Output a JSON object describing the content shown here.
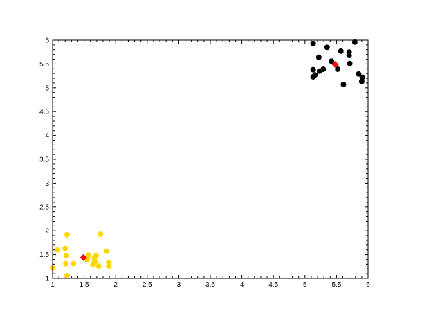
{
  "chart_data": {
    "type": "scatter",
    "title": "",
    "xlabel": "",
    "ylabel": "",
    "xlim": [
      1,
      6
    ],
    "ylim": [
      1,
      6
    ],
    "x_ticks": [
      "1",
      "1.5",
      "2",
      "2.5",
      "3",
      "3.5",
      "4",
      "4.5",
      "5",
      "5.5",
      "6"
    ],
    "y_ticks": [
      "1",
      "1.5",
      "2",
      "2.5",
      "3",
      "3.5",
      "4",
      "4.5",
      "5",
      "5.5",
      "6"
    ],
    "grid": false,
    "series": [
      {
        "color": "#ffd700",
        "marker": "circle",
        "x": [
          1.23,
          1.76,
          1.08,
          1.2,
          1.22,
          1.86,
          1.57,
          1.69,
          1.55,
          1.66,
          1.67,
          1.64,
          1.21,
          1.33,
          1.73,
          1.89,
          1.89,
          1.0,
          1.23
        ],
        "y": [
          1.92,
          1.93,
          1.6,
          1.63,
          1.48,
          1.57,
          1.49,
          1.48,
          1.39,
          1.42,
          1.35,
          1.29,
          1.31,
          1.31,
          1.26,
          1.33,
          1.26,
          1.22,
          1.06
        ]
      },
      {
        "color": "#000000",
        "marker": "circle",
        "x": [
          5.13,
          5.35,
          5.79,
          5.57,
          5.7,
          5.7,
          5.22,
          5.42,
          5.52,
          5.71,
          5.13,
          5.23,
          5.29,
          5.16,
          5.13,
          5.85,
          5.91,
          5.9,
          5.61
        ],
        "y": [
          5.93,
          5.85,
          5.96,
          5.77,
          5.75,
          5.68,
          5.64,
          5.56,
          5.39,
          5.51,
          5.38,
          5.35,
          5.39,
          5.27,
          5.23,
          5.29,
          5.22,
          5.13,
          5.07
        ]
      },
      {
        "color": "#ff0000",
        "marker": "diamond",
        "x": [
          1.49,
          5.48
        ],
        "y": [
          1.44,
          5.49
        ]
      }
    ]
  }
}
